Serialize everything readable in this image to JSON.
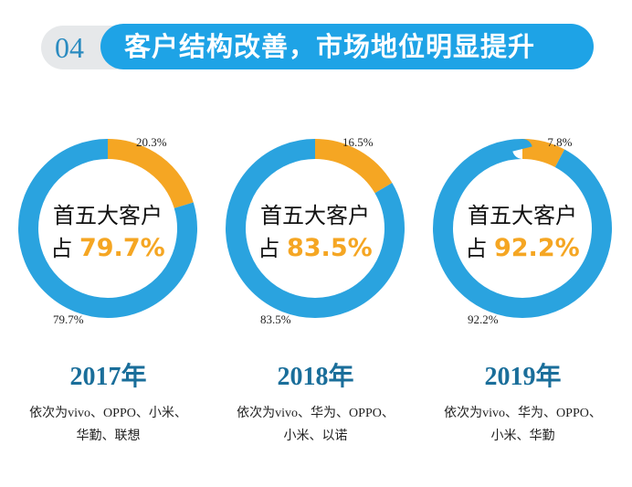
{
  "header": {
    "number": "04",
    "title": "客户结构改善，市场地位明显提升"
  },
  "colors": {
    "other": "#f5a623",
    "top5": "#2aa3df",
    "accent_text": "#f5a623",
    "year": "#1a6e9a"
  },
  "chart_data": [
    {
      "type": "pie",
      "subtype": "donut",
      "year": "2017年",
      "center_line1": "首五大客户",
      "center_prefix": "占",
      "center_value": "79.7%",
      "slices": [
        {
          "label": "20.3%",
          "value": 20.3,
          "color": "#f5a623"
        },
        {
          "label": "79.7%",
          "value": 79.7,
          "color": "#2aa3df"
        }
      ],
      "desc_line1": "依次为vivo、OPPO、小米、",
      "desc_line2": "华勤、联想"
    },
    {
      "type": "pie",
      "subtype": "donut",
      "year": "2018年",
      "center_line1": "首五大客户",
      "center_prefix": "占",
      "center_value": "83.5%",
      "slices": [
        {
          "label": "16.5%",
          "value": 16.5,
          "color": "#f5a623"
        },
        {
          "label": "83.5%",
          "value": 83.5,
          "color": "#2aa3df"
        }
      ],
      "desc_line1": "依次为vivo、华为、OPPO、",
      "desc_line2": "小米、以诺"
    },
    {
      "type": "pie",
      "subtype": "donut",
      "year": "2019年",
      "center_line1": "首五大客户",
      "center_prefix": "占",
      "center_value": "92.2%",
      "slices": [
        {
          "label": "7.8%",
          "value": 7.8,
          "color": "#f5a623"
        },
        {
          "label": "92.2%",
          "value": 92.2,
          "color": "#2aa3df"
        }
      ],
      "desc_line1": "依次为vivo、华为、OPPO、",
      "desc_line2": "小米、华勤"
    }
  ]
}
